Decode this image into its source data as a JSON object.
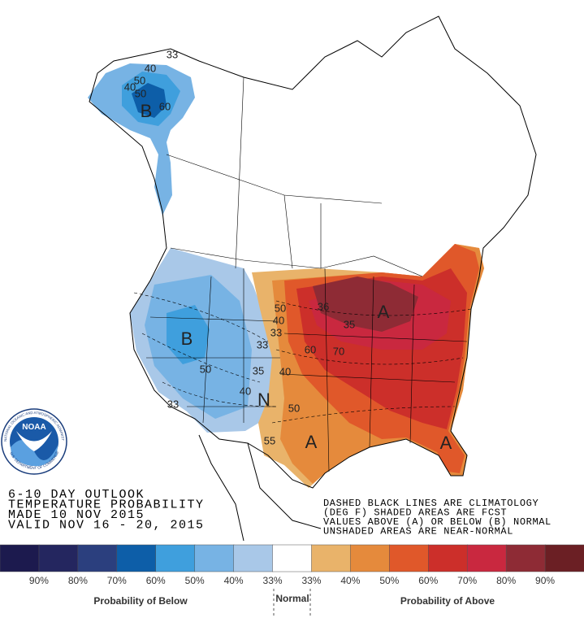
{
  "map": {
    "labels": [
      "40",
      "50",
      "40",
      "50",
      "B",
      "60",
      "33",
      "B",
      "50",
      "33",
      "33",
      "35",
      "40",
      "N",
      "50",
      "40",
      "33",
      "36",
      "35",
      "A",
      "60",
      "70",
      "40",
      "50",
      "55",
      "A",
      "A"
    ]
  },
  "info": {
    "lines": [
      "6-10 DAY OUTLOOK",
      "TEMPERATURE PROBABILITY",
      "MADE  10 NOV 2015",
      "VALID  NOV 16 - 20, 2015"
    ]
  },
  "notes": {
    "lines": [
      "DASHED BLACK LINES ARE CLIMATOLOGY",
      "(DEG F) SHADED AREAS ARE FCST",
      "VALUES ABOVE (A) OR BELOW (B) NORMAL",
      "UNSHADED AREAS ARE NEAR-NORMAL"
    ]
  },
  "logo": {
    "name": "NOAA",
    "ring_top": "NATIONAL OCEANIC AND ATMOSPHERIC ADMINISTRATION",
    "ring_bottom": "U.S. DEPARTMENT OF COMMERCE"
  },
  "legend": {
    "labels": [
      "90%",
      "80%",
      "70%",
      "60%",
      "50%",
      "40%",
      "33%",
      "33%",
      "40%",
      "50%",
      "60%",
      "70%",
      "80%",
      "90%"
    ],
    "colors": [
      "#1c1a4e",
      "#24265f",
      "#2b3f7e",
      "#0d5ea8",
      "#3f9fdd",
      "#77b3e4",
      "#a9c8e8",
      "#ffffff",
      "#e9b36a",
      "#e58a3c",
      "#e0582a",
      "#cc2f2a",
      "#c9283f",
      "#8e2b35",
      "#6b1f24"
    ],
    "below": "Probability of Below",
    "normal": "Normal",
    "above": "Probability of Above"
  }
}
